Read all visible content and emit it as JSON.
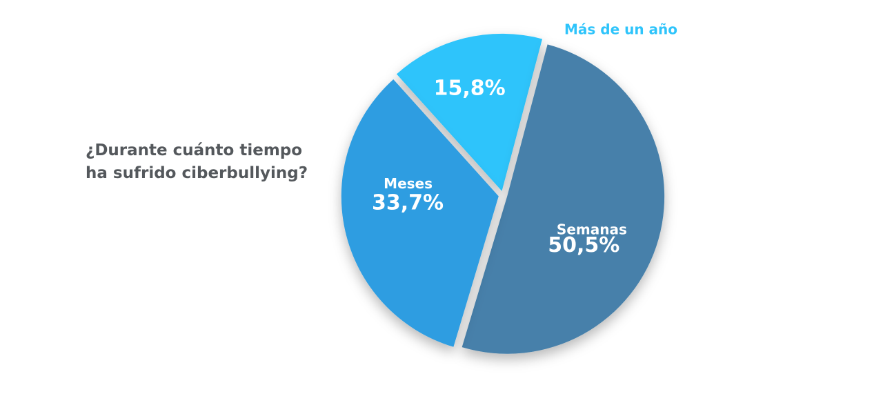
{
  "chart_data": {
    "type": "pie",
    "title": "¿Durante cuánto tiempo ha sufrido ciberbullying?",
    "title_lines": [
      "¿Durante cuánto tiempo",
      "ha sufrido ciberbullying?"
    ],
    "slices": [
      {
        "label": "Más de un año",
        "value": 15.8,
        "value_label": "15,8%",
        "color": "#2ec4fb",
        "label_outside": true
      },
      {
        "label": "Semanas",
        "value": 50.5,
        "value_label": "50,5%",
        "color": "#4680aa",
        "label_outside": false
      },
      {
        "label": "Meses",
        "value": 33.7,
        "value_label": "33,7%",
        "color": "#2d9de1",
        "label_outside": false
      }
    ],
    "legend": "none",
    "grid": false
  }
}
